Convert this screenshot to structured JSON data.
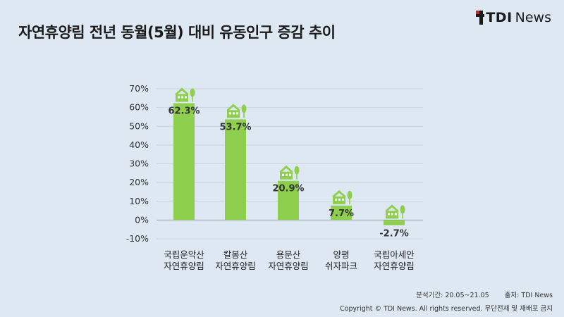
{
  "title": "자연휴양림 전년 동월(5월) 대비 유동인구 증감 추이",
  "logo": {
    "tdi": "TDI",
    "news": "News"
  },
  "chart_data": {
    "type": "bar",
    "categories": [
      [
        "국립운악산",
        "자연휴양림"
      ],
      [
        "칼봉산",
        "자연휴양림"
      ],
      [
        "용문산",
        "자연휴양림"
      ],
      [
        "양평",
        "쉬자파크"
      ],
      [
        "국립아세안",
        "자연휴양림"
      ]
    ],
    "values": [
      62.3,
      53.7,
      20.9,
      7.7,
      -2.7
    ],
    "value_labels": [
      "62.3%",
      "53.7%",
      "20.9%",
      "7.7%",
      "-2.7%"
    ],
    "yticks": [
      "70%",
      "60%",
      "50%",
      "40%",
      "30%",
      "20%",
      "10%",
      "0%",
      "-10%"
    ],
    "ylim": [
      -10,
      70
    ],
    "grid": true,
    "bar_color": "#8fcf4e",
    "icon": "house-tree-icon"
  },
  "footer": {
    "period": "분석기간: 20.05~21.05",
    "source": "출처: TDI News",
    "copyright": "Copyright © TDI News. All rights reserved. 무단전재 및 재배포 금지"
  }
}
